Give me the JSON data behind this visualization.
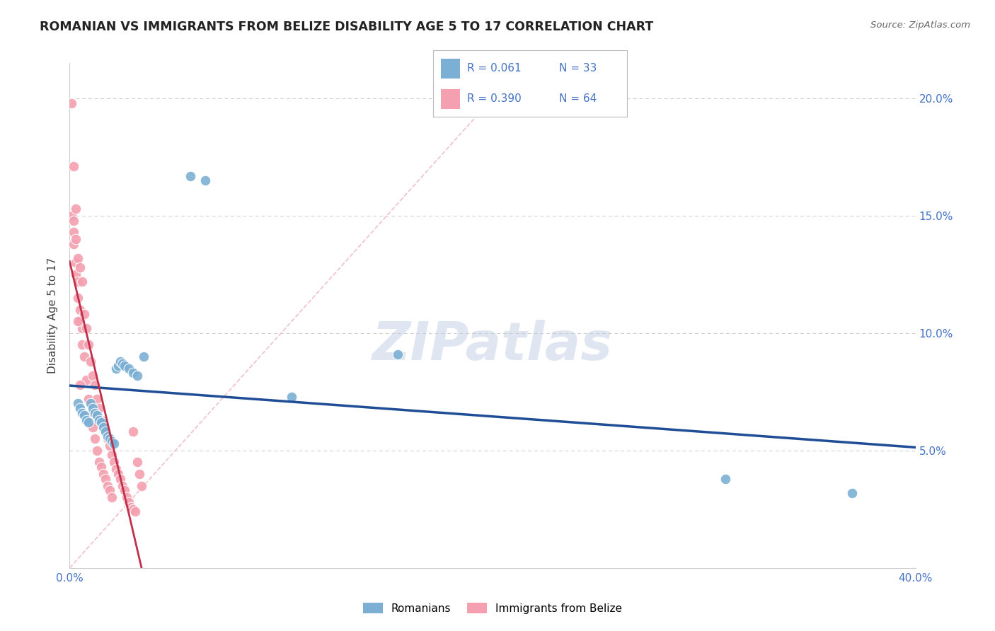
{
  "title": "ROMANIAN VS IMMIGRANTS FROM BELIZE DISABILITY AGE 5 TO 17 CORRELATION CHART",
  "source": "Source: ZipAtlas.com",
  "ylabel": "Disability Age 5 to 17",
  "xlim": [
    0.0,
    0.4
  ],
  "ylim": [
    0.0,
    0.215
  ],
  "yticks": [
    0.0,
    0.05,
    0.1,
    0.15,
    0.2
  ],
  "ytick_labels_right": [
    "",
    "5.0%",
    "10.0%",
    "15.0%",
    "20.0%"
  ],
  "xticks": [
    0.0,
    0.05,
    0.1,
    0.15,
    0.2,
    0.25,
    0.3,
    0.35,
    0.4
  ],
  "color_romanian": "#7bafd4",
  "color_belize": "#f4a0b0",
  "color_trend_romanian": "#1f4e96",
  "color_trend_belize": "#c0304a",
  "color_diagonal": "#f2c0cc",
  "watermark": "ZIPatlas",
  "romanians_x": [
    0.004,
    0.005,
    0.006,
    0.007,
    0.008,
    0.009,
    0.01,
    0.011,
    0.012,
    0.013,
    0.014,
    0.015,
    0.016,
    0.017,
    0.018,
    0.019,
    0.02,
    0.021,
    0.022,
    0.023,
    0.024,
    0.025,
    0.026,
    0.028,
    0.03,
    0.032,
    0.035,
    0.057,
    0.064,
    0.105,
    0.155,
    0.31,
    0.37
  ],
  "romanians_y": [
    0.07,
    0.068,
    0.066,
    0.065,
    0.063,
    0.062,
    0.07,
    0.068,
    0.066,
    0.065,
    0.063,
    0.062,
    0.06,
    0.058,
    0.056,
    0.055,
    0.054,
    0.053,
    0.085,
    0.086,
    0.088,
    0.087,
    0.086,
    0.085,
    0.083,
    0.082,
    0.09,
    0.167,
    0.165,
    0.073,
    0.091,
    0.038,
    0.032
  ],
  "belize_x": [
    0.001,
    0.001,
    0.002,
    0.002,
    0.002,
    0.003,
    0.003,
    0.003,
    0.004,
    0.004,
    0.004,
    0.005,
    0.005,
    0.005,
    0.006,
    0.006,
    0.006,
    0.007,
    0.007,
    0.008,
    0.008,
    0.009,
    0.009,
    0.01,
    0.01,
    0.011,
    0.011,
    0.012,
    0.012,
    0.013,
    0.013,
    0.014,
    0.014,
    0.015,
    0.015,
    0.016,
    0.016,
    0.017,
    0.017,
    0.018,
    0.018,
    0.019,
    0.019,
    0.02,
    0.02,
    0.021,
    0.022,
    0.023,
    0.024,
    0.025,
    0.026,
    0.027,
    0.028,
    0.029,
    0.03,
    0.03,
    0.031,
    0.032,
    0.033,
    0.034,
    0.002,
    0.003,
    0.004,
    0.005
  ],
  "belize_y": [
    0.198,
    0.15,
    0.148,
    0.143,
    0.138,
    0.153,
    0.13,
    0.125,
    0.132,
    0.122,
    0.115,
    0.128,
    0.11,
    0.105,
    0.122,
    0.102,
    0.095,
    0.108,
    0.09,
    0.102,
    0.08,
    0.095,
    0.072,
    0.088,
    0.065,
    0.082,
    0.06,
    0.078,
    0.055,
    0.072,
    0.05,
    0.068,
    0.045,
    0.063,
    0.043,
    0.06,
    0.04,
    0.058,
    0.038,
    0.055,
    0.035,
    0.052,
    0.033,
    0.048,
    0.03,
    0.045,
    0.042,
    0.04,
    0.038,
    0.035,
    0.033,
    0.03,
    0.028,
    0.026,
    0.058,
    0.025,
    0.024,
    0.045,
    0.04,
    0.035,
    0.171,
    0.14,
    0.105,
    0.078
  ]
}
